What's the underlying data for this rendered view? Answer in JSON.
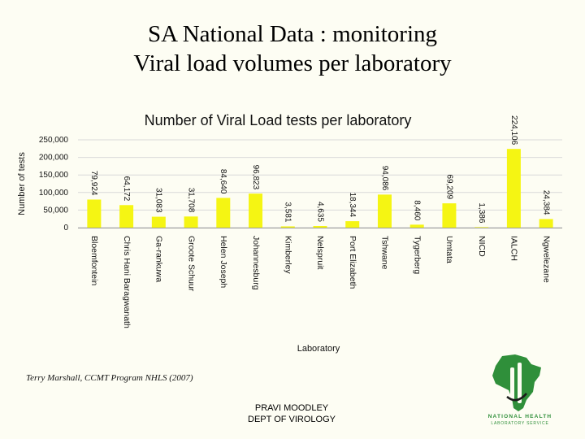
{
  "slide": {
    "title_line1": "SA National Data : monitoring",
    "title_line2": "Viral load volumes per laboratory",
    "credit": "Terry Marshall, CCMT Program NHLS (2007)",
    "footer_line1": "PRAVI MOODLEY",
    "footer_line2": "DEPT OF VIROLOGY"
  },
  "logo": {
    "text_line1": "NATIONAL HEALTH",
    "text_line2": "LABORATORY SERVICE"
  },
  "colors": {
    "bar": "#f5f513",
    "gridline": "#d9d9d9",
    "logo_green": "#2f8f3a",
    "logo_dark": "#1a1a1a"
  },
  "chart_data": {
    "type": "bar",
    "title": "Number of Viral Load tests per laboratory",
    "xlabel": "Laboratory",
    "ylabel": "Number of tests",
    "ylim": [
      0,
      250000
    ],
    "yticks": [
      0,
      50000,
      100000,
      150000,
      200000,
      250000
    ],
    "ytick_labels": [
      "0",
      "50,000",
      "100,000",
      "150,000",
      "200,000",
      "250,000"
    ],
    "grid": true,
    "categories": [
      "Bloemfontein",
      "Chris Hani Baragwanath",
      "Ga-rankuwa",
      "Groote Schuur",
      "Helen Joseph",
      "Johannesburg",
      "Kimberley",
      "Nelspruit",
      "Port Elizabeth",
      "Tshwane",
      "Tygerberg",
      "Umtata",
      "NICD",
      "IALCH",
      "Ngwelezane"
    ],
    "values": [
      79924,
      64172,
      31083,
      31708,
      84640,
      96823,
      3581,
      4635,
      18344,
      94086,
      8460,
      69209,
      1386,
      224106,
      24384
    ],
    "value_labels": [
      "79,924",
      "64,172",
      "31,083",
      "31,708",
      "84,640",
      "96,823",
      "3,581",
      "4,635",
      "18,344",
      "94,086",
      "8,460",
      "69,209",
      "1,386",
      "224,106",
      "24,384"
    ]
  }
}
